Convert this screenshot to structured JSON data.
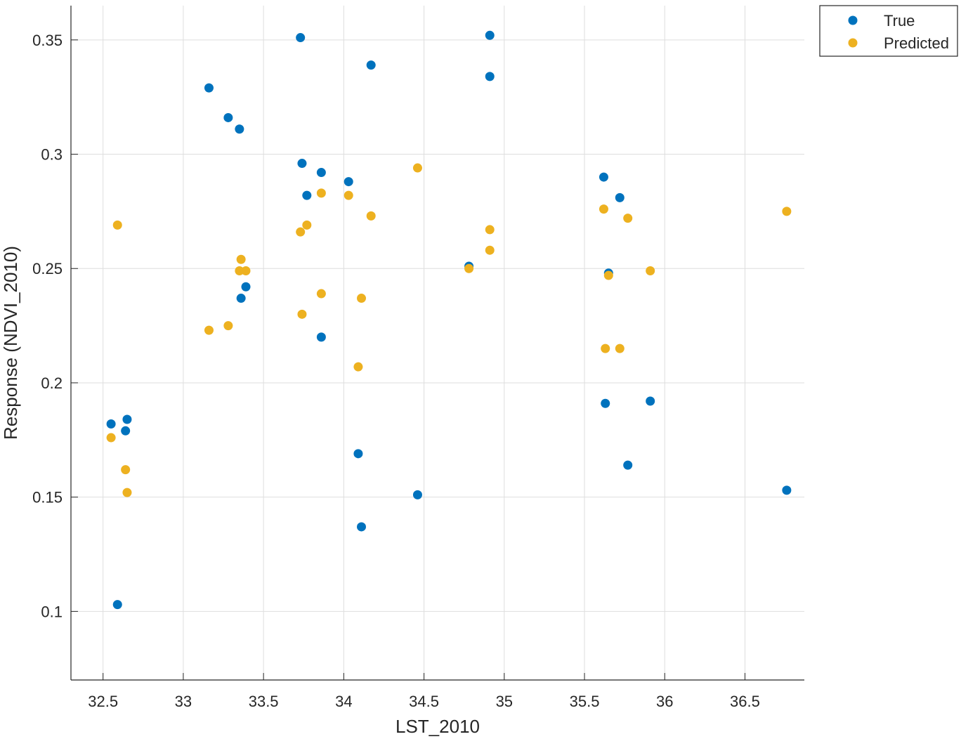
{
  "chart_data": {
    "type": "scatter",
    "xlabel": "LST_2010",
    "ylabel": "Response (NDVI_2010)",
    "xlim": [
      32.3,
      36.87
    ],
    "ylim": [
      0.07,
      0.365
    ],
    "xticks": [
      "32.5",
      "33",
      "33.5",
      "34",
      "34.5",
      "35",
      "35.5",
      "36",
      "36.5"
    ],
    "yticks": [
      "0.1",
      "0.15",
      "0.2",
      "0.25",
      "0.3",
      "0.35"
    ],
    "grid": true,
    "legend_position": "outside-top-right",
    "series": [
      {
        "name": "True",
        "color": "#0072BD",
        "points": [
          [
            32.55,
            0.182
          ],
          [
            32.59,
            0.103
          ],
          [
            32.64,
            0.179
          ],
          [
            32.65,
            0.184
          ],
          [
            33.16,
            0.329
          ],
          [
            33.28,
            0.316
          ],
          [
            33.35,
            0.311
          ],
          [
            33.36,
            0.237
          ],
          [
            33.39,
            0.242
          ],
          [
            33.73,
            0.351
          ],
          [
            33.74,
            0.296
          ],
          [
            33.77,
            0.282
          ],
          [
            33.86,
            0.292
          ],
          [
            33.86,
            0.22
          ],
          [
            34.03,
            0.288
          ],
          [
            34.09,
            0.169
          ],
          [
            34.11,
            0.137
          ],
          [
            34.17,
            0.339
          ],
          [
            34.46,
            0.151
          ],
          [
            34.78,
            0.251
          ],
          [
            34.91,
            0.334
          ],
          [
            34.91,
            0.352
          ],
          [
            35.62,
            0.29
          ],
          [
            35.63,
            0.191
          ],
          [
            35.65,
            0.248
          ],
          [
            35.72,
            0.281
          ],
          [
            35.77,
            0.164
          ],
          [
            35.91,
            0.192
          ],
          [
            36.76,
            0.153
          ]
        ]
      },
      {
        "name": "Predicted",
        "color": "#EDB120",
        "points": [
          [
            32.55,
            0.176
          ],
          [
            32.59,
            0.269
          ],
          [
            32.64,
            0.162
          ],
          [
            32.65,
            0.152
          ],
          [
            33.16,
            0.223
          ],
          [
            33.28,
            0.225
          ],
          [
            33.35,
            0.249
          ],
          [
            33.36,
            0.254
          ],
          [
            33.39,
            0.249
          ],
          [
            33.73,
            0.266
          ],
          [
            33.74,
            0.23
          ],
          [
            33.77,
            0.269
          ],
          [
            33.86,
            0.283
          ],
          [
            33.86,
            0.239
          ],
          [
            34.03,
            0.282
          ],
          [
            34.09,
            0.207
          ],
          [
            34.11,
            0.237
          ],
          [
            34.17,
            0.273
          ],
          [
            34.46,
            0.294
          ],
          [
            34.78,
            0.25
          ],
          [
            34.91,
            0.267
          ],
          [
            34.91,
            0.258
          ],
          [
            35.62,
            0.276
          ],
          [
            35.63,
            0.215
          ],
          [
            35.65,
            0.247
          ],
          [
            35.72,
            0.215
          ],
          [
            35.77,
            0.272
          ],
          [
            35.91,
            0.249
          ],
          [
            36.76,
            0.275
          ]
        ]
      }
    ]
  }
}
